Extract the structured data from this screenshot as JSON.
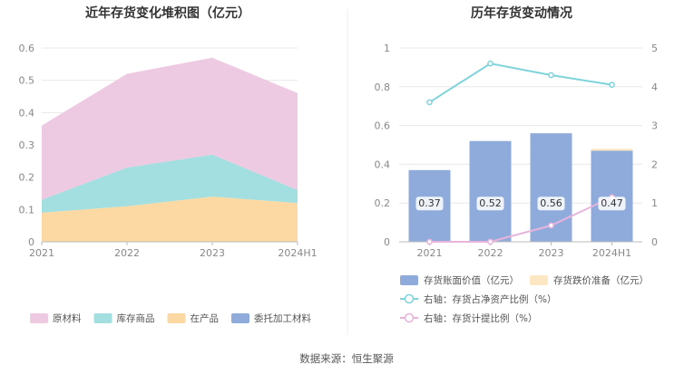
{
  "source": "数据来源：恒生聚源",
  "chart_data": [
    {
      "type": "area",
      "stacked": true,
      "title": "近年存货变化堆积图（亿元）",
      "categories": [
        "2021",
        "2022",
        "2023",
        "2024H1"
      ],
      "ylim": [
        0,
        0.6
      ],
      "yticks": [
        "0",
        "0.1",
        "0.2",
        "0.3",
        "0.4",
        "0.5",
        "0.6"
      ],
      "grid": true,
      "legend_position": "bottom",
      "series": [
        {
          "name": "在产品",
          "values": [
            0.09,
            0.11,
            0.14,
            0.12
          ],
          "color": "#fcd9a2"
        },
        {
          "name": "委托加工材料",
          "values": [
            0,
            0,
            0,
            0
          ],
          "color": "#8fabdb"
        },
        {
          "name": "库存商品",
          "values": [
            0.04,
            0.12,
            0.13,
            0.04
          ],
          "color": "#a3dfe0"
        },
        {
          "name": "原材料",
          "values": [
            0.23,
            0.29,
            0.3,
            0.3
          ],
          "color": "#eec9e2"
        }
      ],
      "legend_order": [
        "原材料",
        "库存商品",
        "在产品",
        "委托加工材料"
      ]
    },
    {
      "type": "bar",
      "title": "历年存货变动情况",
      "categories": [
        "2021",
        "2022",
        "2023",
        "2024H1"
      ],
      "ylim": [
        0,
        1
      ],
      "yticks": [
        "0",
        "0.2",
        "0.4",
        "0.6",
        "0.8",
        "1"
      ],
      "y2lim": [
        0,
        5
      ],
      "y2ticks": [
        "0",
        "1",
        "2",
        "3",
        "4",
        "5"
      ],
      "series": [
        {
          "name": "存货账面价值（亿元）",
          "values": [
            0.37,
            0.52,
            0.56,
            0.47
          ],
          "labels": [
            "0.37",
            "0.52",
            "0.56",
            "0.47"
          ],
          "color": "#8fabdb"
        },
        {
          "name": "存货跌价准备（亿元）",
          "values": [
            0,
            0,
            0,
            0.01
          ],
          "color": "#fde7c2"
        }
      ],
      "lines": [
        {
          "name": "右轴：存货占净资产比例（%）",
          "values": [
            3.6,
            4.6,
            4.3,
            4.05
          ],
          "color": "#7fd3dc"
        },
        {
          "name": "右轴：存货计提比例（%）",
          "values": [
            0,
            0,
            0.42,
            1.15
          ],
          "color": "#e8b4dc"
        }
      ]
    }
  ]
}
